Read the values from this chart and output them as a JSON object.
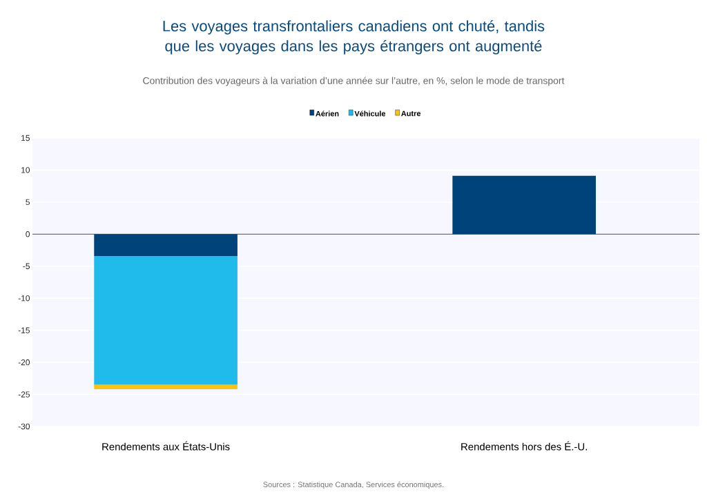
{
  "chart_data": {
    "type": "bar",
    "stacked": true,
    "title": "Les voyages transfrontaliers canadiens ont chuté, tandis que les voyages dans les pays étrangers ont augmenté",
    "subtitle": "Contribution des voyageurs à la variation d’une année sur l’autre, en %, selon le mode de transport",
    "categories": [
      "Rendements aux États-Unis",
      "Rendements hors des É.-U."
    ],
    "series": [
      {
        "name": "Aérien",
        "color": "#00427a",
        "values": [
          -3.4,
          9.1
        ]
      },
      {
        "name": "Véhicule",
        "color": "#20bbea",
        "values": [
          -20.1,
          null
        ]
      },
      {
        "name": "Autre",
        "color": "#fbc20e",
        "values": [
          -0.7,
          null
        ]
      }
    ],
    "ylim": [
      -30,
      15
    ],
    "yticks": [
      -30,
      -25,
      -20,
      -15,
      -10,
      -5,
      0,
      5,
      10,
      15
    ],
    "grid": "y",
    "legend": "top",
    "annotations": [
      "Sources : Statistique Canada, Services économiques."
    ]
  }
}
